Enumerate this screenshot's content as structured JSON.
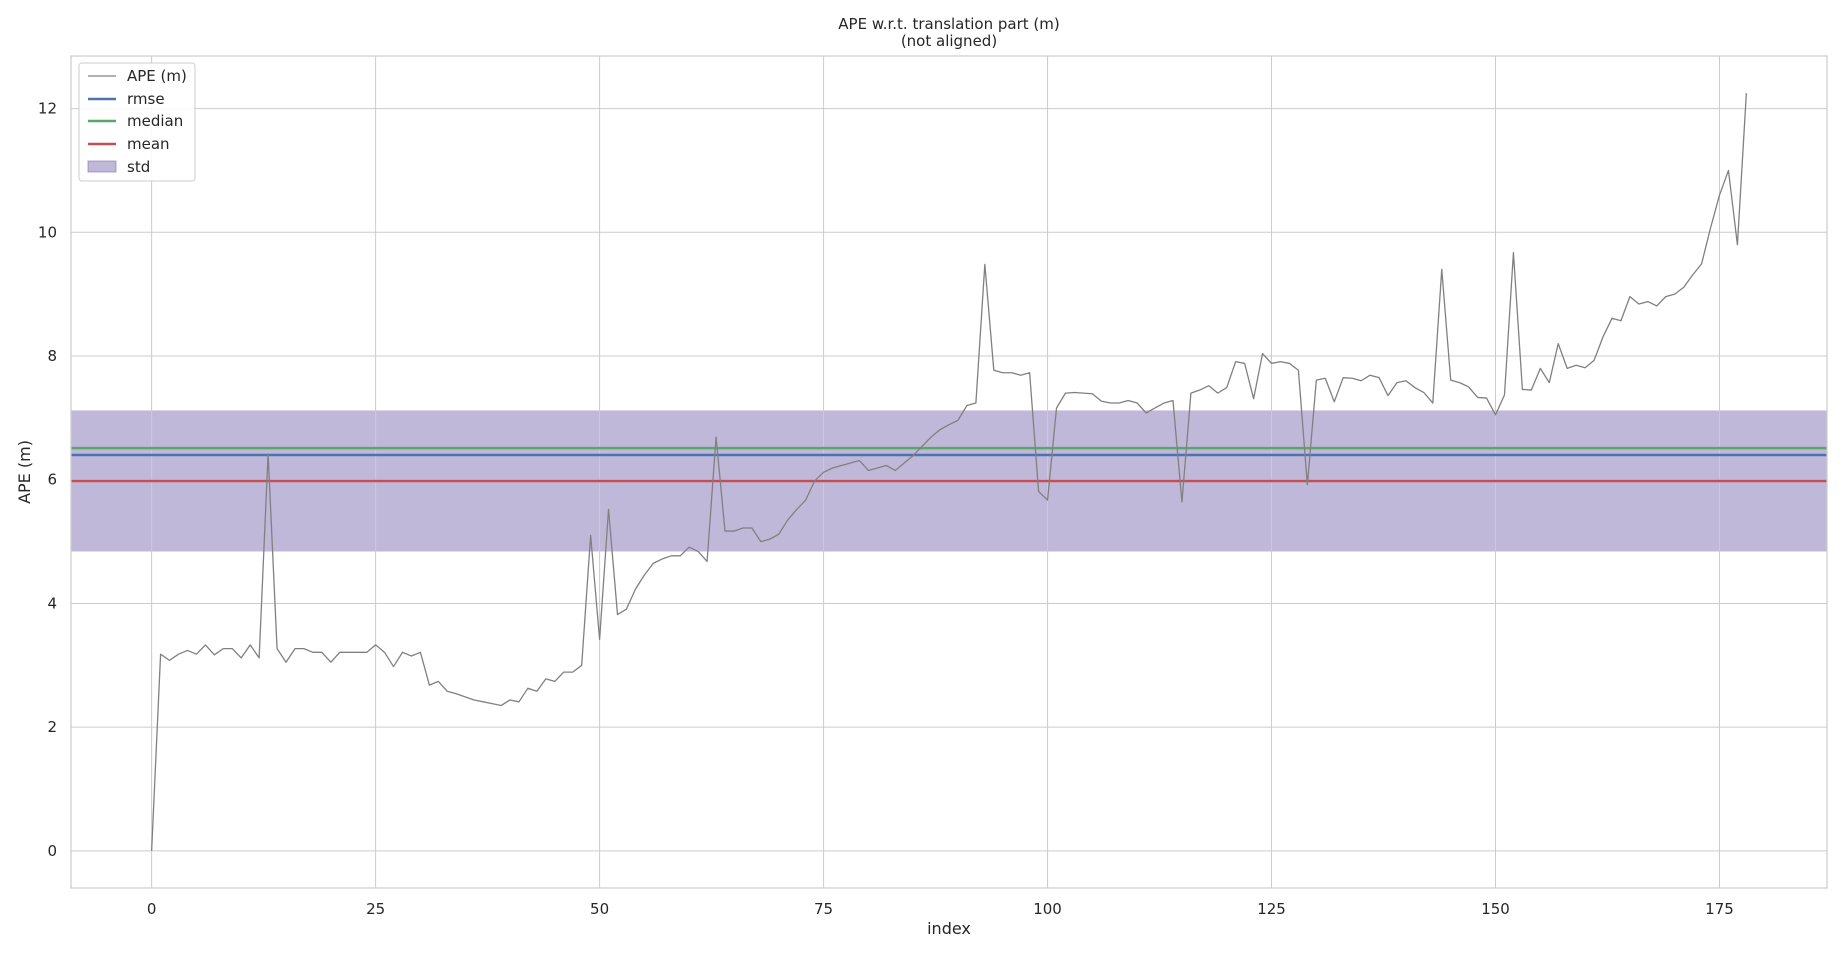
{
  "chart_data": {
    "type": "line",
    "title": "APE w.r.t. translation part (m)",
    "subtitle": "(not aligned)",
    "xlabel": "index",
    "ylabel": "APE (m)",
    "xlim": [
      -9,
      187
    ],
    "ylim": [
      -0.6,
      12.85
    ],
    "xticks": [
      0,
      25,
      50,
      75,
      100,
      125,
      150,
      175
    ],
    "yticks": [
      0,
      2,
      4,
      6,
      8,
      10,
      12
    ],
    "grid": true,
    "legend_position": "top-left",
    "colors": {
      "ape": "#808080",
      "rmse": "#4c72b0",
      "median": "#55a868",
      "mean": "#c44e52",
      "std": "#8172b2"
    },
    "legend": [
      "APE (m)",
      "rmse",
      "median",
      "mean",
      "std"
    ],
    "stats": {
      "rmse": 6.4,
      "median": 6.51,
      "mean": 5.98,
      "std_low": 4.84,
      "std_high": 7.12
    },
    "series": [
      {
        "name": "APE (m)",
        "values": [
          0.0,
          3.18,
          3.08,
          3.18,
          3.24,
          3.18,
          3.33,
          3.17,
          3.27,
          3.27,
          3.12,
          3.33,
          3.12,
          6.42,
          3.27,
          3.05,
          3.27,
          3.27,
          3.21,
          3.21,
          3.05,
          3.21,
          3.21,
          3.21,
          3.21,
          3.33,
          3.21,
          2.98,
          3.21,
          3.15,
          3.21,
          2.68,
          2.74,
          2.58,
          2.54,
          2.49,
          2.44,
          2.41,
          2.38,
          2.35,
          2.44,
          2.41,
          2.63,
          2.58,
          2.78,
          2.74,
          2.89,
          2.89,
          3.0,
          5.1,
          3.42,
          5.52,
          3.82,
          3.91,
          4.23,
          4.46,
          4.65,
          4.72,
          4.77,
          4.77,
          4.91,
          4.84,
          4.68,
          6.69,
          5.17,
          5.17,
          5.22,
          5.22,
          5.0,
          5.04,
          5.12,
          5.35,
          5.52,
          5.67,
          5.98,
          6.12,
          6.19,
          6.23,
          6.27,
          6.31,
          6.15,
          6.19,
          6.23,
          6.15,
          6.27,
          6.39,
          6.54,
          6.69,
          6.81,
          6.89,
          6.96,
          7.2,
          7.24,
          9.48,
          7.77,
          7.73,
          7.73,
          7.69,
          7.73,
          5.81,
          5.67,
          7.16,
          7.4,
          7.41,
          7.4,
          7.39,
          7.27,
          7.24,
          7.24,
          7.28,
          7.24,
          7.08,
          7.16,
          7.24,
          7.28,
          5.64,
          7.4,
          7.45,
          7.52,
          7.4,
          7.49,
          7.91,
          7.88,
          7.31,
          8.04,
          7.88,
          7.91,
          7.88,
          7.77,
          5.92,
          7.61,
          7.64,
          7.26,
          7.65,
          7.64,
          7.6,
          7.69,
          7.65,
          7.36,
          7.57,
          7.6,
          7.49,
          7.41,
          7.24,
          9.4,
          7.61,
          7.57,
          7.5,
          7.33,
          7.32,
          7.05,
          7.37,
          9.67,
          7.46,
          7.45,
          7.8,
          7.57,
          8.2,
          7.8,
          7.85,
          7.81,
          7.93,
          8.31,
          8.61,
          8.57,
          8.96,
          8.84,
          8.88,
          8.81,
          8.96,
          9.0,
          9.11,
          9.31,
          9.49,
          10.07,
          10.6,
          11.0,
          9.8,
          12.25
        ]
      }
    ]
  }
}
